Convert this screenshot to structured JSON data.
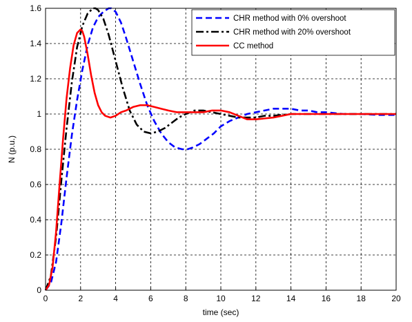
{
  "chart_data": {
    "type": "line",
    "title": "",
    "xlabel": "time (sec)",
    "ylabel": "N (p.u.)",
    "xlim": [
      0,
      20
    ],
    "ylim": [
      0,
      1.6
    ],
    "xticks": [
      0,
      2,
      4,
      6,
      8,
      10,
      12,
      14,
      16,
      18,
      20
    ],
    "yticks": [
      0,
      0.2,
      0.4,
      0.6,
      0.8,
      1,
      1.2,
      1.4,
      1.6
    ],
    "grid": true,
    "legend_position": "top-right",
    "series": [
      {
        "name": "CHR method with 0% overshoot",
        "color": "#0000ff",
        "style": "dashed",
        "x": [
          0,
          0.3,
          0.6,
          0.9,
          1.2,
          1.5,
          1.8,
          2.1,
          2.4,
          2.7,
          3.0,
          3.3,
          3.6,
          3.75,
          4.0,
          4.3,
          4.6,
          5.0,
          5.4,
          5.8,
          6.2,
          6.6,
          7.0,
          7.4,
          7.8,
          8.1,
          8.4,
          8.8,
          9.2,
          9.6,
          10.0,
          10.5,
          11.0,
          11.5,
          12.0,
          12.5,
          13.0,
          13.5,
          14.0,
          14.5,
          15.0,
          15.5,
          16.0,
          17.0,
          18.0,
          19.0,
          20.0
        ],
        "y": [
          0,
          0.04,
          0.16,
          0.38,
          0.64,
          0.88,
          1.08,
          1.25,
          1.39,
          1.49,
          1.55,
          1.58,
          1.6,
          1.6,
          1.58,
          1.52,
          1.43,
          1.3,
          1.17,
          1.05,
          0.96,
          0.89,
          0.84,
          0.81,
          0.8,
          0.8,
          0.81,
          0.83,
          0.86,
          0.89,
          0.93,
          0.96,
          0.98,
          1.0,
          1.01,
          1.02,
          1.03,
          1.03,
          1.03,
          1.02,
          1.02,
          1.01,
          1.01,
          1.0,
          1.0,
          0.995,
          0.995
        ]
      },
      {
        "name": "CHR method with 20% overshoot",
        "color": "#000000",
        "style": "dashdot",
        "x": [
          0,
          0.3,
          0.6,
          0.9,
          1.2,
          1.5,
          1.8,
          2.1,
          2.4,
          2.7,
          2.85,
          3.0,
          3.3,
          3.6,
          4.0,
          4.4,
          4.8,
          5.2,
          5.6,
          6.0,
          6.4,
          6.8,
          7.2,
          7.6,
          8.0,
          8.5,
          9.0,
          9.5,
          10.0,
          10.5,
          11.0,
          11.5,
          12.0,
          12.5,
          13.0,
          14.0,
          15.0,
          16.0,
          17.0,
          18.0,
          20.0
        ],
        "y": [
          0,
          0.08,
          0.3,
          0.62,
          0.92,
          1.18,
          1.38,
          1.5,
          1.57,
          1.6,
          1.6,
          1.59,
          1.54,
          1.45,
          1.3,
          1.15,
          1.02,
          0.94,
          0.9,
          0.89,
          0.9,
          0.92,
          0.95,
          0.98,
          1.0,
          1.02,
          1.02,
          1.01,
          1.0,
          0.99,
          0.98,
          0.98,
          0.98,
          0.99,
          0.99,
          1.0,
          1.0,
          1.0,
          1.0,
          1.0,
          1.0
        ]
      },
      {
        "name": "CC method",
        "color": "#ff0000",
        "style": "solid",
        "x": [
          0,
          0.2,
          0.4,
          0.6,
          0.8,
          1.0,
          1.2,
          1.4,
          1.6,
          1.8,
          2.0,
          2.1,
          2.2,
          2.4,
          2.6,
          2.8,
          3.0,
          3.2,
          3.4,
          3.7,
          4.0,
          4.3,
          4.6,
          5.0,
          5.4,
          5.8,
          6.2,
          6.6,
          7.0,
          7.5,
          8.0,
          8.5,
          9.0,
          9.5,
          10.0,
          10.5,
          11.0,
          11.5,
          12.0,
          13.0,
          14.0,
          15.0,
          16.0,
          17.0,
          18.0,
          19.0,
          20.0
        ],
        "y": [
          0,
          0.03,
          0.13,
          0.33,
          0.6,
          0.86,
          1.09,
          1.26,
          1.39,
          1.46,
          1.48,
          1.47,
          1.44,
          1.34,
          1.22,
          1.12,
          1.05,
          1.01,
          0.99,
          0.98,
          0.99,
          1.01,
          1.02,
          1.04,
          1.05,
          1.05,
          1.04,
          1.03,
          1.02,
          1.01,
          1.01,
          1.01,
          1.01,
          1.02,
          1.02,
          1.01,
          0.99,
          0.97,
          0.97,
          0.98,
          1.0,
          1.0,
          1.0,
          1.0,
          1.0,
          1.0,
          1.0
        ]
      }
    ]
  }
}
